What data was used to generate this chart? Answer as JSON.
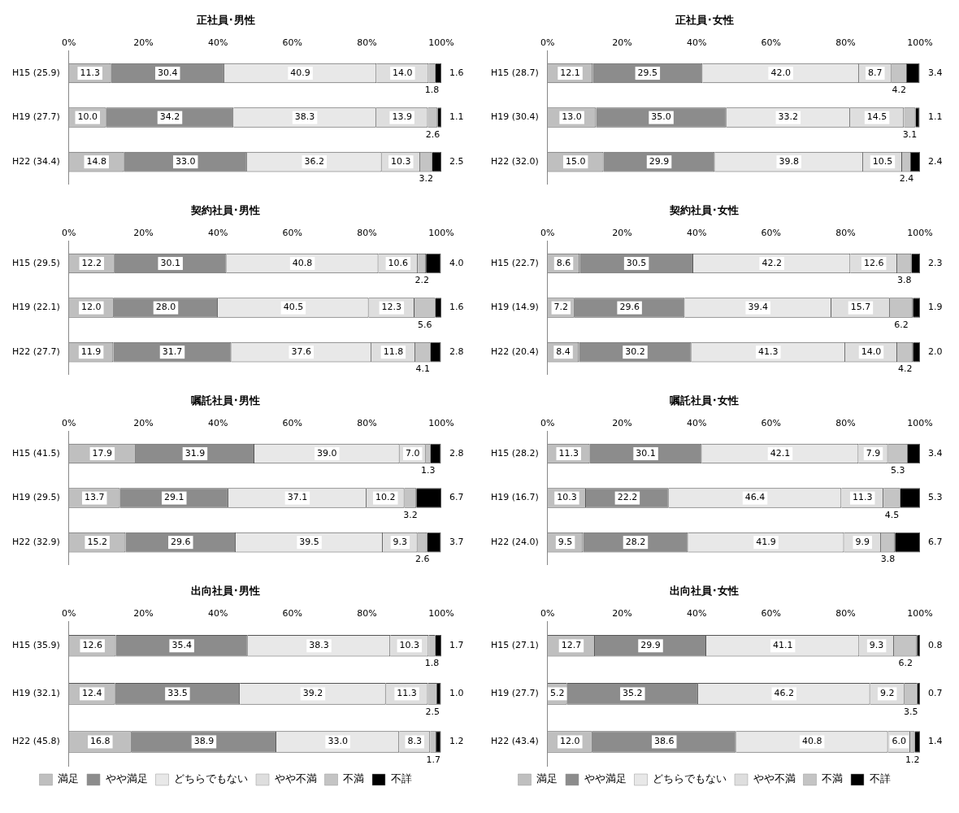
{
  "chart_data": [
    {
      "type": "bar",
      "orientation": "horizontal",
      "stacked": true,
      "title": "正社員･男性",
      "categories": [
        "H15 (25.9)",
        "H19 (27.7)",
        "H22 (34.4)"
      ],
      "xlim": [
        0,
        100
      ],
      "xticks": [
        {
          "value": 0,
          "label": "0%"
        },
        {
          "value": 20,
          "label": "20%"
        },
        {
          "value": 40,
          "label": "40%"
        },
        {
          "value": 60,
          "label": "60%"
        },
        {
          "value": 80,
          "label": "80%"
        },
        {
          "value": 100,
          "label": "100%"
        }
      ],
      "legend": false,
      "series": [
        {
          "color": "#bfbfbf",
          "values": [
            11.3,
            10.0,
            14.8
          ],
          "value_labels": [
            "11.3",
            "10.0",
            "14.8"
          ]
        },
        {
          "color": "#8c8c8c",
          "values": [
            30.4,
            34.2,
            33.0
          ],
          "value_labels": [
            "30.4",
            "34.2",
            "33.0"
          ]
        },
        {
          "color": "#e8e8e8",
          "values": [
            40.9,
            38.3,
            36.2
          ],
          "value_labels": [
            "40.9",
            "38.3",
            "36.2"
          ]
        },
        {
          "color": "#dedede",
          "values": [
            14.0,
            13.9,
            10.3
          ],
          "value_labels": [
            "14.0",
            "13.9",
            "10.3"
          ]
        },
        {
          "color": "#c4c4c4",
          "values": [
            1.8,
            2.6,
            3.2
          ],
          "value_labels": [
            "1.8",
            "2.6",
            "3.2"
          ]
        },
        {
          "color": "#000000",
          "values": [
            1.6,
            1.1,
            2.5
          ],
          "value_labels": [
            "1.6",
            "1.1",
            "2.5"
          ]
        }
      ]
    },
    {
      "type": "bar",
      "orientation": "horizontal",
      "stacked": true,
      "title": "正社員･女性",
      "categories": [
        "H15 (28.7)",
        "H19 (30.4)",
        "H22 (32.0)"
      ],
      "xlim": [
        0,
        100
      ],
      "xticks": [
        {
          "value": 0,
          "label": "0%"
        },
        {
          "value": 20,
          "label": "20%"
        },
        {
          "value": 40,
          "label": "40%"
        },
        {
          "value": 60,
          "label": "60%"
        },
        {
          "value": 80,
          "label": "80%"
        },
        {
          "value": 100,
          "label": "100%"
        }
      ],
      "legend": false,
      "series": [
        {
          "color": "#bfbfbf",
          "values": [
            12.1,
            13.0,
            15.0
          ],
          "value_labels": [
            "12.1",
            "13.0",
            "15.0"
          ]
        },
        {
          "color": "#8c8c8c",
          "values": [
            29.5,
            35.0,
            29.9
          ],
          "value_labels": [
            "29.5",
            "35.0",
            "29.9"
          ]
        },
        {
          "color": "#e8e8e8",
          "values": [
            42.0,
            33.2,
            39.8
          ],
          "value_labels": [
            "42.0",
            "33.2",
            "39.8"
          ]
        },
        {
          "color": "#dedede",
          "values": [
            8.7,
            14.5,
            10.5
          ],
          "value_labels": [
            "8.7",
            "14.5",
            "10.5"
          ]
        },
        {
          "color": "#c4c4c4",
          "values": [
            4.2,
            3.1,
            2.4
          ],
          "value_labels": [
            "4.2",
            "3.1",
            "2.4"
          ]
        },
        {
          "color": "#000000",
          "values": [
            3.4,
            1.1,
            2.4
          ],
          "value_labels": [
            "3.4",
            "1.1",
            "2.4"
          ]
        }
      ]
    },
    {
      "type": "bar",
      "orientation": "horizontal",
      "stacked": true,
      "title": "契約社員･男性",
      "categories": [
        "H15 (29.5)",
        "H19 (22.1)",
        "H22 (27.7)"
      ],
      "xlim": [
        0,
        100
      ],
      "xticks": [
        {
          "value": 0,
          "label": "0%"
        },
        {
          "value": 20,
          "label": "20%"
        },
        {
          "value": 40,
          "label": "40%"
        },
        {
          "value": 60,
          "label": "60%"
        },
        {
          "value": 80,
          "label": "80%"
        },
        {
          "value": 100,
          "label": "100%"
        }
      ],
      "legend": false,
      "series": [
        {
          "color": "#bfbfbf",
          "values": [
            12.2,
            12.0,
            11.9
          ],
          "value_labels": [
            "12.2",
            "12.0",
            "11.9"
          ]
        },
        {
          "color": "#8c8c8c",
          "values": [
            30.1,
            28.0,
            31.7
          ],
          "value_labels": [
            "30.1",
            "28.0",
            "31.7"
          ]
        },
        {
          "color": "#e8e8e8",
          "values": [
            40.8,
            40.5,
            37.6
          ],
          "value_labels": [
            "40.8",
            "40.5",
            "37.6"
          ]
        },
        {
          "color": "#dedede",
          "values": [
            10.6,
            12.3,
            11.8
          ],
          "value_labels": [
            "10.6",
            "12.3",
            "11.8"
          ]
        },
        {
          "color": "#c4c4c4",
          "values": [
            2.2,
            5.6,
            4.1
          ],
          "value_labels": [
            "2.2",
            "5.6",
            "4.1"
          ]
        },
        {
          "color": "#000000",
          "values": [
            4.0,
            1.6,
            2.8
          ],
          "value_labels": [
            "4.0",
            "1.6",
            "2.8"
          ]
        }
      ]
    },
    {
      "type": "bar",
      "orientation": "horizontal",
      "stacked": true,
      "title": "契約社員･女性",
      "categories": [
        "H15 (22.7)",
        "H19 (14.9)",
        "H22 (20.4)"
      ],
      "xlim": [
        0,
        100
      ],
      "xticks": [
        {
          "value": 0,
          "label": "0%"
        },
        {
          "value": 20,
          "label": "20%"
        },
        {
          "value": 40,
          "label": "40%"
        },
        {
          "value": 60,
          "label": "60%"
        },
        {
          "value": 80,
          "label": "80%"
        },
        {
          "value": 100,
          "label": "100%"
        }
      ],
      "legend": false,
      "series": [
        {
          "color": "#bfbfbf",
          "values": [
            8.6,
            7.2,
            8.4
          ],
          "value_labels": [
            "8.6",
            "7.2",
            "8.4"
          ]
        },
        {
          "color": "#8c8c8c",
          "values": [
            30.5,
            29.6,
            30.2
          ],
          "value_labels": [
            "30.5",
            "29.6",
            "30.2"
          ]
        },
        {
          "color": "#e8e8e8",
          "values": [
            42.2,
            39.4,
            41.3
          ],
          "value_labels": [
            "42.2",
            "39.4",
            "41.3"
          ]
        },
        {
          "color": "#dedede",
          "values": [
            12.6,
            15.7,
            14.0
          ],
          "value_labels": [
            "12.6",
            "15.7",
            "14.0"
          ]
        },
        {
          "color": "#c4c4c4",
          "values": [
            3.8,
            6.2,
            4.2
          ],
          "value_labels": [
            "3.8",
            "6.2",
            "4.2"
          ]
        },
        {
          "color": "#000000",
          "values": [
            2.3,
            1.9,
            2.0
          ],
          "value_labels": [
            "2.3",
            "1.9",
            "2.0"
          ]
        }
      ]
    },
    {
      "type": "bar",
      "orientation": "horizontal",
      "stacked": true,
      "title": "嘱託社員･男性",
      "categories": [
        "H15 (41.5)",
        "H19 (29.5)",
        "H22 (32.9)"
      ],
      "xlim": [
        0,
        100
      ],
      "xticks": [
        {
          "value": 0,
          "label": "0%"
        },
        {
          "value": 20,
          "label": "20%"
        },
        {
          "value": 40,
          "label": "40%"
        },
        {
          "value": 60,
          "label": "60%"
        },
        {
          "value": 80,
          "label": "80%"
        },
        {
          "value": 100,
          "label": "100%"
        }
      ],
      "legend": false,
      "series": [
        {
          "color": "#bfbfbf",
          "values": [
            17.9,
            13.7,
            15.2
          ],
          "value_labels": [
            "17.9",
            "13.7",
            "15.2"
          ]
        },
        {
          "color": "#8c8c8c",
          "values": [
            31.9,
            29.1,
            29.6
          ],
          "value_labels": [
            "31.9",
            "29.1",
            "29.6"
          ]
        },
        {
          "color": "#e8e8e8",
          "values": [
            39.0,
            37.1,
            39.5
          ],
          "value_labels": [
            "39.0",
            "37.1",
            "39.5"
          ]
        },
        {
          "color": "#dedede",
          "values": [
            7.0,
            10.2,
            9.3
          ],
          "value_labels": [
            "7.0",
            "10.2",
            "9.3"
          ]
        },
        {
          "color": "#c4c4c4",
          "values": [
            1.3,
            3.2,
            2.6
          ],
          "value_labels": [
            "1.3",
            "3.2",
            "2.6"
          ]
        },
        {
          "color": "#000000",
          "values": [
            2.8,
            6.7,
            3.7
          ],
          "value_labels": [
            "2.8",
            "6.7",
            "3.7"
          ]
        }
      ]
    },
    {
      "type": "bar",
      "orientation": "horizontal",
      "stacked": true,
      "title": "嘱託社員･女性",
      "categories": [
        "H15 (28.2)",
        "H19 (16.7)",
        "H22 (24.0)"
      ],
      "xlim": [
        0,
        100
      ],
      "xticks": [
        {
          "value": 0,
          "label": "0%"
        },
        {
          "value": 20,
          "label": "20%"
        },
        {
          "value": 40,
          "label": "40%"
        },
        {
          "value": 60,
          "label": "60%"
        },
        {
          "value": 80,
          "label": "80%"
        },
        {
          "value": 100,
          "label": "100%"
        }
      ],
      "legend": false,
      "series": [
        {
          "color": "#bfbfbf",
          "values": [
            11.3,
            10.3,
            9.5
          ],
          "value_labels": [
            "11.3",
            "10.3",
            "9.5"
          ]
        },
        {
          "color": "#8c8c8c",
          "values": [
            30.1,
            22.2,
            28.2
          ],
          "value_labels": [
            "30.1",
            "22.2",
            "28.2"
          ]
        },
        {
          "color": "#e8e8e8",
          "values": [
            42.1,
            46.4,
            41.9
          ],
          "value_labels": [
            "42.1",
            "46.4",
            "41.9"
          ]
        },
        {
          "color": "#dedede",
          "values": [
            7.9,
            11.3,
            9.9
          ],
          "value_labels": [
            "7.9",
            "11.3",
            "9.9"
          ]
        },
        {
          "color": "#c4c4c4",
          "values": [
            5.3,
            4.5,
            3.8
          ],
          "value_labels": [
            "5.3",
            "4.5",
            "3.8"
          ]
        },
        {
          "color": "#000000",
          "values": [
            3.4,
            5.3,
            6.7
          ],
          "value_labels": [
            "3.4",
            "5.3",
            "6.7"
          ]
        }
      ]
    },
    {
      "type": "bar",
      "orientation": "horizontal",
      "stacked": true,
      "title": "出向社員･男性",
      "categories": [
        "H15 (35.9)",
        "H19 (32.1)",
        "H22 (45.8)"
      ],
      "xlim": [
        0,
        100
      ],
      "xticks": [
        {
          "value": 0,
          "label": "0%"
        },
        {
          "value": 20,
          "label": "20%"
        },
        {
          "value": 40,
          "label": "40%"
        },
        {
          "value": 60,
          "label": "60%"
        },
        {
          "value": 80,
          "label": "80%"
        },
        {
          "value": 100,
          "label": "100%"
        }
      ],
      "legend": "bottom",
      "series": [
        {
          "name": "満足",
          "color": "#bfbfbf",
          "values": [
            12.6,
            12.4,
            16.8
          ],
          "value_labels": [
            "12.6",
            "12.4",
            "16.8"
          ]
        },
        {
          "name": "やや満足",
          "color": "#8c8c8c",
          "values": [
            35.4,
            33.5,
            38.9
          ],
          "value_labels": [
            "35.4",
            "33.5",
            "38.9"
          ]
        },
        {
          "name": "どちらでもない",
          "color": "#e8e8e8",
          "values": [
            38.3,
            39.2,
            33.0
          ],
          "value_labels": [
            "38.3",
            "39.2",
            "33.0"
          ]
        },
        {
          "name": "やや不満",
          "color": "#dedede",
          "values": [
            10.3,
            11.3,
            8.3
          ],
          "value_labels": [
            "10.3",
            "11.3",
            "8.3"
          ]
        },
        {
          "name": "不満",
          "color": "#c4c4c4",
          "values": [
            1.8,
            2.5,
            1.7
          ],
          "value_labels": [
            "1.8",
            "2.5",
            "1.7"
          ]
        },
        {
          "name": "不詳",
          "color": "#000000",
          "values": [
            1.7,
            1.0,
            1.2
          ],
          "value_labels": [
            "1.7",
            "1.0",
            "1.2"
          ]
        }
      ]
    },
    {
      "type": "bar",
      "orientation": "horizontal",
      "stacked": true,
      "title": "出向社員･女性",
      "categories": [
        "H15 (27.1)",
        "H19 (27.7)",
        "H22 (43.4)"
      ],
      "xlim": [
        0,
        100
      ],
      "xticks": [
        {
          "value": 0,
          "label": "0%"
        },
        {
          "value": 20,
          "label": "20%"
        },
        {
          "value": 40,
          "label": "40%"
        },
        {
          "value": 60,
          "label": "60%"
        },
        {
          "value": 80,
          "label": "80%"
        },
        {
          "value": 100,
          "label": "100%"
        }
      ],
      "legend": "bottom",
      "series": [
        {
          "name": "満足",
          "color": "#bfbfbf",
          "values": [
            12.7,
            5.2,
            12.0
          ],
          "value_labels": [
            "12.7",
            "5.2",
            "12.0"
          ]
        },
        {
          "name": "やや満足",
          "color": "#8c8c8c",
          "values": [
            29.9,
            35.2,
            38.6
          ],
          "value_labels": [
            "29.9",
            "35.2",
            "38.6"
          ]
        },
        {
          "name": "どちらでもない",
          "color": "#e8e8e8",
          "values": [
            41.1,
            46.2,
            40.8
          ],
          "value_labels": [
            "41.1",
            "46.2",
            "40.8"
          ]
        },
        {
          "name": "やや不満",
          "color": "#dedede",
          "values": [
            9.3,
            9.2,
            6.0
          ],
          "value_labels": [
            "9.3",
            "9.2",
            "6.0"
          ]
        },
        {
          "name": "不満",
          "color": "#c4c4c4",
          "values": [
            6.2,
            3.5,
            1.2
          ],
          "value_labels": [
            "6.2",
            "3.5",
            "1.2"
          ]
        },
        {
          "name": "不詳",
          "color": "#000000",
          "values": [
            0.8,
            0.7,
            1.4
          ],
          "value_labels": [
            "0.8",
            "0.7",
            "1.4"
          ]
        }
      ]
    }
  ]
}
